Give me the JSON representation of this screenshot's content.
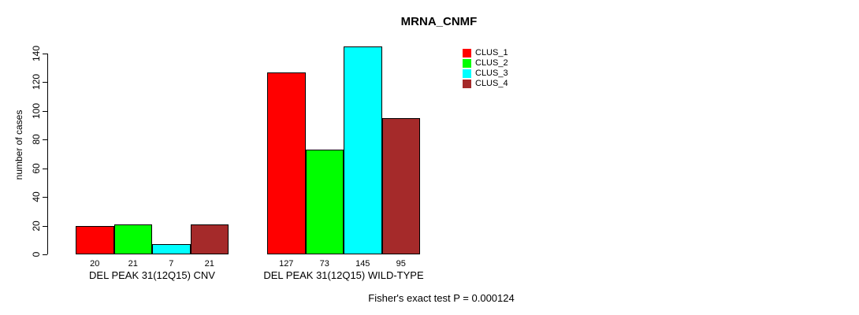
{
  "chart_data": {
    "type": "bar",
    "title": "MRNA_CNMF",
    "ylabel": "number of cases",
    "ylim": [
      0,
      140
    ],
    "yticks": [
      0,
      20,
      40,
      60,
      80,
      100,
      120,
      140
    ],
    "grid": false,
    "legend_position": "top-right",
    "series": [
      {
        "name": "CLUS_1",
        "color": "#FF0000"
      },
      {
        "name": "CLUS_2",
        "color": "#00FF00"
      },
      {
        "name": "CLUS_3",
        "color": "#00FFFF"
      },
      {
        "name": "CLUS_4",
        "color": "#A52A2A"
      }
    ],
    "groups": [
      {
        "label": "DEL PEAK 31(12Q15) CNV",
        "values": [
          20,
          21,
          7,
          21
        ]
      },
      {
        "label": "DEL PEAK 31(12Q15) WILD-TYPE",
        "values": [
          127,
          73,
          145,
          95
        ]
      }
    ],
    "annotation": "Fisher's exact test P = 0.000124"
  }
}
